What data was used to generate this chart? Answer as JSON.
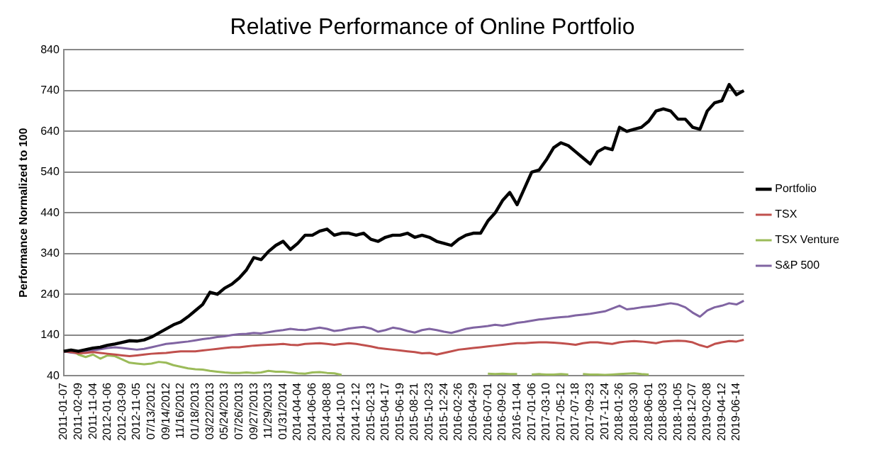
{
  "chart_data": {
    "type": "line",
    "title": "Relative Performance of Online Portfolio",
    "ylabel": "Performance Normalized to 100",
    "categories": [
      "2011-01-07",
      null,
      "2011-02-09",
      null,
      "2011-11-04",
      null,
      "2012-01-06",
      null,
      "2012-03-09",
      null,
      "2012-11-05",
      null,
      "07/13/2012",
      null,
      "09/14/2012",
      null,
      "11/16/2012",
      null,
      "01/18/2013",
      null,
      "03/22/2013",
      null,
      "05/24/2013",
      null,
      "07/26/2013",
      null,
      "09/27/2013",
      null,
      "11/29/2013",
      null,
      "01/31/2014",
      null,
      "2014-04-04",
      null,
      "2014-06-06",
      null,
      "2014-08-08",
      null,
      "2014-10-10",
      null,
      "2014-12-12",
      null,
      "2015-02-13",
      null,
      "2015-04-17",
      null,
      "2015-06-19",
      null,
      "2015-08-21",
      null,
      "2015-10-23",
      null,
      "2015-12-24",
      null,
      "2016-02-26",
      null,
      "2016-04-29",
      null,
      "2016-07-01",
      null,
      "2016-09-02",
      null,
      "2016-11-04",
      null,
      "2017-01-06",
      null,
      "2017-03-10",
      null,
      "2017-05-12",
      null,
      "2017-07-18",
      null,
      "2017-09-23",
      null,
      "2017-11-24",
      null,
      "2018-01-26",
      null,
      "2018-03-30",
      null,
      "2018-06-01",
      null,
      "2018-08-03",
      null,
      "2018-10-05",
      null,
      "2018-12-07",
      null,
      "2019-02-08",
      null,
      "2019-04-12",
      null,
      "2019-06-14",
      null
    ],
    "series": [
      {
        "name": "Portfolio",
        "color": "#000000",
        "values": [
          100,
          103,
          100,
          104,
          108,
          110,
          115,
          118,
          122,
          126,
          125,
          128,
          135,
          145,
          155,
          165,
          172,
          185,
          200,
          215,
          245,
          240,
          255,
          265,
          280,
          300,
          330,
          325,
          345,
          360,
          370,
          350,
          365,
          385,
          385,
          395,
          400,
          385,
          390,
          390,
          385,
          390,
          375,
          370,
          380,
          385,
          385,
          390,
          380,
          385,
          380,
          370,
          365,
          360,
          375,
          385,
          390,
          390,
          420,
          440,
          470,
          490,
          460,
          500,
          540,
          545,
          570,
          600,
          612,
          605,
          590,
          575,
          560,
          590,
          600,
          595,
          650,
          640,
          645,
          650,
          665,
          690,
          695,
          690,
          670,
          670,
          650,
          645,
          690,
          710,
          715,
          755,
          730,
          740
        ]
      },
      {
        "name": "TSX",
        "color": "#c0504d",
        "values": [
          100,
          98,
          95,
          96,
          98,
          96,
          94,
          92,
          90,
          88,
          90,
          92,
          94,
          95,
          96,
          98,
          100,
          100,
          100,
          102,
          104,
          106,
          108,
          110,
          110,
          112,
          114,
          115,
          116,
          117,
          118,
          116,
          115,
          118,
          119,
          120,
          118,
          116,
          118,
          120,
          118,
          115,
          112,
          108,
          106,
          104,
          102,
          100,
          98,
          95,
          96,
          92,
          96,
          100,
          104,
          106,
          108,
          110,
          112,
          114,
          116,
          118,
          120,
          120,
          121,
          122,
          122,
          121,
          120,
          118,
          116,
          120,
          122,
          122,
          120,
          118,
          122,
          124,
          125,
          124,
          122,
          120,
          124,
          125,
          126,
          125,
          122,
          115,
          110,
          118,
          122,
          125,
          124,
          128
        ]
      },
      {
        "name": "TSX Venture",
        "color": "#9bbb59",
        "values": [
          100,
          104,
          92,
          86,
          92,
          82,
          90,
          88,
          80,
          72,
          70,
          68,
          70,
          74,
          72,
          66,
          62,
          58,
          56,
          55,
          52,
          50,
          48,
          47,
          47,
          48,
          47,
          48,
          52,
          50,
          50,
          48,
          46,
          45,
          48,
          49,
          47,
          46,
          42,
          null,
          null,
          null,
          null,
          null,
          null,
          null,
          null,
          null,
          null,
          null,
          null,
          null,
          null,
          null,
          null,
          null,
          null,
          null,
          45,
          44,
          45,
          44,
          44,
          null,
          43,
          44,
          43,
          43,
          44,
          43,
          null,
          44,
          43,
          43,
          42,
          43,
          44,
          45,
          46,
          44,
          43,
          null,
          null,
          null,
          null,
          null,
          null,
          null,
          null,
          null,
          null,
          null,
          null,
          null
        ]
      },
      {
        "name": "S&P 500",
        "color": "#8064a2",
        "values": [
          100,
          97,
          95,
          98,
          102,
          105,
          108,
          110,
          108,
          106,
          104,
          106,
          110,
          114,
          118,
          120,
          122,
          124,
          127,
          130,
          132,
          135,
          137,
          140,
          142,
          143,
          145,
          144,
          147,
          150,
          152,
          155,
          153,
          152,
          155,
          158,
          155,
          150,
          152,
          156,
          158,
          160,
          156,
          148,
          152,
          158,
          155,
          150,
          146,
          152,
          155,
          152,
          148,
          145,
          150,
          155,
          158,
          160,
          162,
          165,
          163,
          166,
          170,
          172,
          175,
          178,
          180,
          182,
          184,
          185,
          188,
          190,
          192,
          195,
          198,
          205,
          212,
          203,
          205,
          208,
          210,
          212,
          215,
          218,
          215,
          208,
          195,
          185,
          200,
          208,
          212,
          218,
          215,
          224
        ]
      }
    ],
    "ylim": [
      40,
      840
    ],
    "yticks": [
      40,
      140,
      240,
      340,
      440,
      540,
      640,
      740,
      840
    ],
    "grid": "y",
    "legend": "right"
  }
}
